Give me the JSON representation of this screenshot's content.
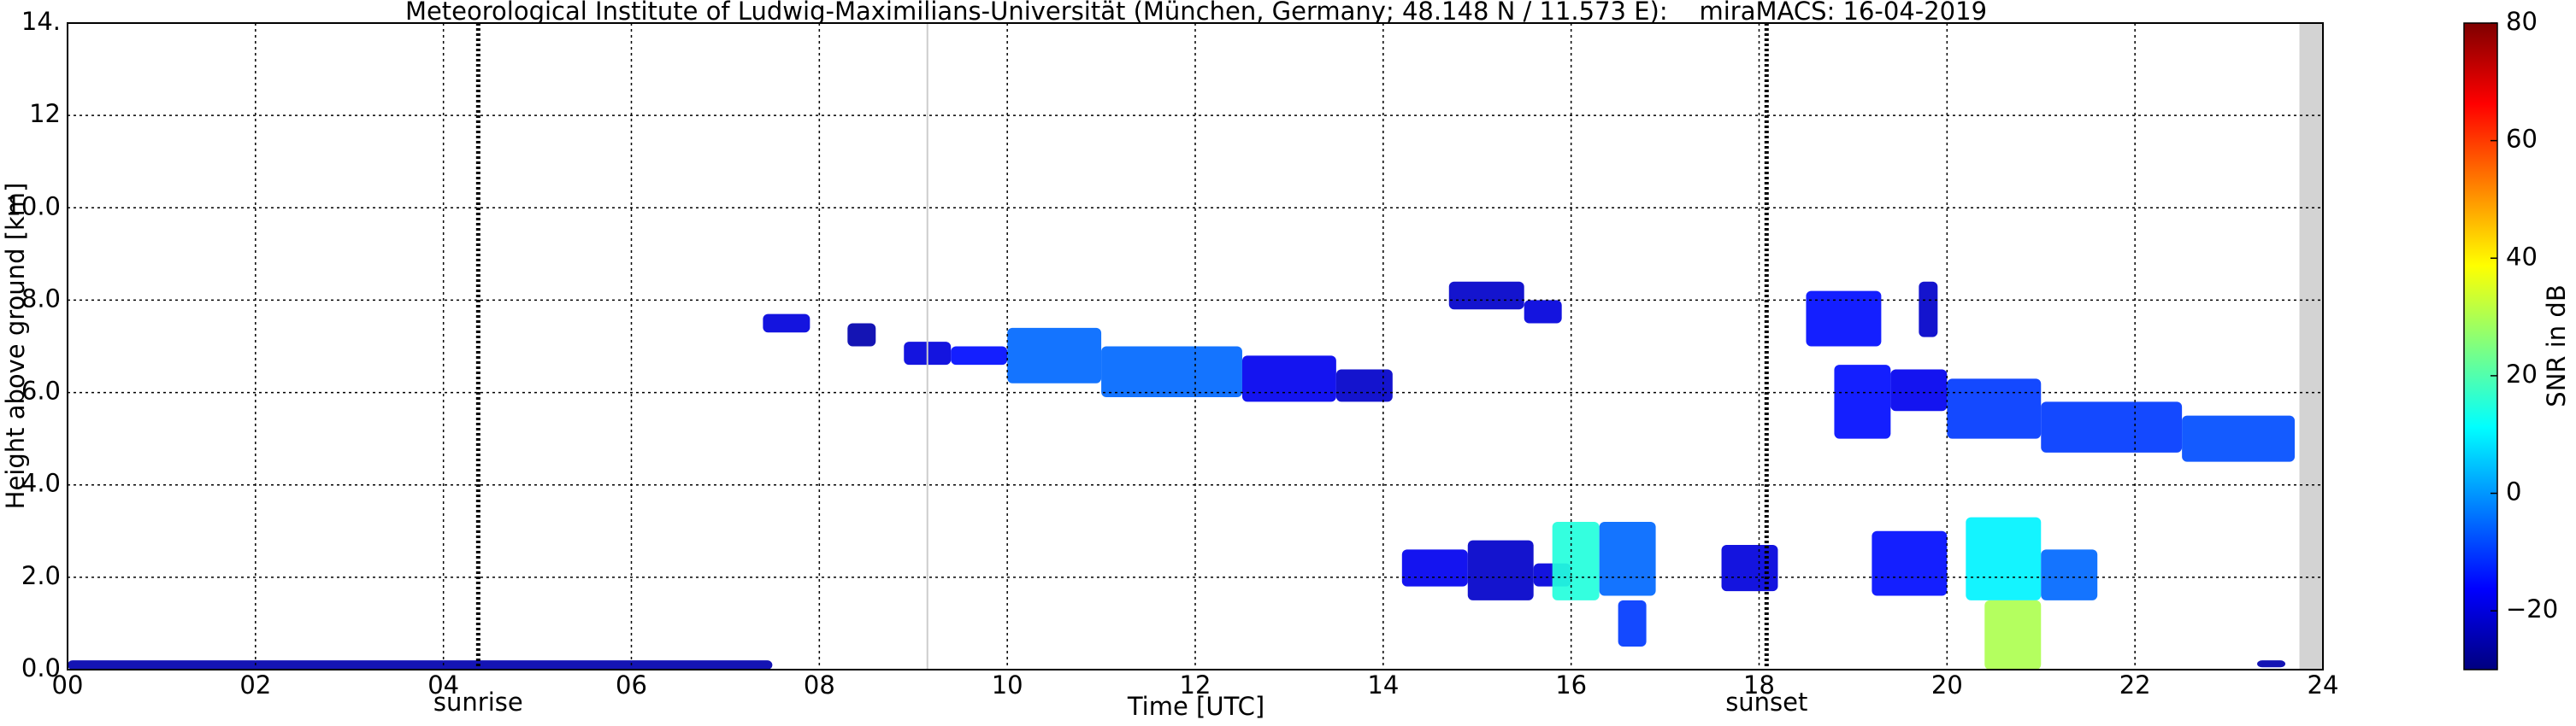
{
  "chart_data": {
    "type": "time-height",
    "title": "Meteorological Institute of Ludwig-Maximilians-Universität (München, Germany; 48.148 N / 11.573 E):    miraMACS: 16-04-2019",
    "x_label": "Time [UTC]",
    "y_label": "Height above ground [km]",
    "colorbar_label": "SNR in dB",
    "xlim": [
      0,
      24
    ],
    "xticks": [
      {
        "value": 0,
        "label": "00"
      },
      {
        "value": 2,
        "label": "02"
      },
      {
        "value": 4,
        "label": "04"
      },
      {
        "value": 6,
        "label": "06"
      },
      {
        "value": 8,
        "label": "08"
      },
      10,
      12,
      14,
      16,
      18,
      20,
      22,
      24
    ],
    "ylim": [
      0,
      14
    ],
    "yticks": [
      {
        "value": 0,
        "label": "0.0"
      },
      {
        "value": 2,
        "label": "2.0"
      },
      {
        "value": 4,
        "label": "4.0"
      },
      {
        "value": 6,
        "label": "6.0"
      },
      {
        "value": 8,
        "label": "8.0"
      },
      {
        "value": 10,
        "label": "10.0"
      },
      12,
      {
        "value": 14,
        "label": "14."
      }
    ],
    "clim": [
      -30,
      80
    ],
    "cticks": [
      {
        "value": -20,
        "label": "−20"
      },
      0,
      20,
      40,
      60,
      80
    ],
    "grid": true,
    "colormap": "jet",
    "events": [
      {
        "label": "sunrise",
        "time": 4.37
      },
      {
        "label": "sunset",
        "time": 18.08
      }
    ],
    "gap_line": 9.15,
    "missing": [
      23.75,
      24
    ],
    "patches": [
      {
        "time": [
          0.0,
          7.5
        ],
        "height": [
          0.0,
          0.2
        ],
        "snr": -25
      },
      {
        "time": [
          7.4,
          7.9
        ],
        "height": [
          7.3,
          7.7
        ],
        "snr": -20
      },
      {
        "time": [
          8.3,
          8.6
        ],
        "height": [
          7.0,
          7.5
        ],
        "snr": -25
      },
      {
        "time": [
          8.9,
          9.4
        ],
        "height": [
          6.6,
          7.1
        ],
        "snr": -20
      },
      {
        "time": [
          9.4,
          10.0
        ],
        "height": [
          6.6,
          7.0
        ],
        "snr": -15
      },
      {
        "time": [
          10.0,
          11.0
        ],
        "height": [
          6.2,
          7.4
        ],
        "snr": -5
      },
      {
        "time": [
          11.0,
          12.5
        ],
        "height": [
          5.9,
          7.0
        ],
        "snr": -5
      },
      {
        "time": [
          12.5,
          13.5
        ],
        "height": [
          5.8,
          6.8
        ],
        "snr": -18
      },
      {
        "time": [
          13.5,
          14.1
        ],
        "height": [
          5.8,
          6.5
        ],
        "snr": -22
      },
      {
        "time": [
          14.7,
          15.5
        ],
        "height": [
          7.8,
          8.4
        ],
        "snr": -22
      },
      {
        "time": [
          15.5,
          15.9
        ],
        "height": [
          7.5,
          8.0
        ],
        "snr": -20
      },
      {
        "time": [
          14.2,
          14.9
        ],
        "height": [
          1.8,
          2.6
        ],
        "snr": -18
      },
      {
        "time": [
          14.9,
          15.6
        ],
        "height": [
          1.5,
          2.8
        ],
        "snr": -22
      },
      {
        "time": [
          15.6,
          16.0
        ],
        "height": [
          1.8,
          2.3
        ],
        "snr": -20
      },
      {
        "time": [
          15.8,
          16.3
        ],
        "height": [
          1.5,
          3.2
        ],
        "snr": 15
      },
      {
        "time": [
          16.3,
          16.9
        ],
        "height": [
          1.6,
          3.2
        ],
        "snr": -5
      },
      {
        "time": [
          16.5,
          16.8
        ],
        "height": [
          0.5,
          1.5
        ],
        "snr": -10
      },
      {
        "time": [
          17.6,
          18.2
        ],
        "height": [
          1.7,
          2.7
        ],
        "snr": -20
      },
      {
        "time": [
          18.5,
          19.3
        ],
        "height": [
          7.0,
          8.2
        ],
        "snr": -15
      },
      {
        "time": [
          19.7,
          19.9
        ],
        "height": [
          7.2,
          8.4
        ],
        "snr": -22
      },
      {
        "time": [
          18.8,
          19.4
        ],
        "height": [
          5.0,
          6.6
        ],
        "snr": -15
      },
      {
        "time": [
          19.4,
          20.0
        ],
        "height": [
          5.6,
          6.5
        ],
        "snr": -18
      },
      {
        "time": [
          20.0,
          21.0
        ],
        "height": [
          5.0,
          6.3
        ],
        "snr": -10
      },
      {
        "time": [
          21.0,
          22.5
        ],
        "height": [
          4.7,
          5.8
        ],
        "snr": -10
      },
      {
        "time": [
          22.5,
          23.7
        ],
        "height": [
          4.5,
          5.5
        ],
        "snr": -8
      },
      {
        "time": [
          19.2,
          20.0
        ],
        "height": [
          1.6,
          3.0
        ],
        "snr": -15
      },
      {
        "time": [
          20.2,
          21.0
        ],
        "height": [
          1.5,
          3.3
        ],
        "snr": 10
      },
      {
        "time": [
          20.4,
          21.0
        ],
        "height": [
          0.0,
          1.5
        ],
        "snr": 30
      },
      {
        "time": [
          21.0,
          21.6
        ],
        "height": [
          1.5,
          2.6
        ],
        "snr": -5
      },
      {
        "time": [
          23.3,
          23.6
        ],
        "height": [
          0.05,
          0.2
        ],
        "snr": -25
      }
    ]
  }
}
